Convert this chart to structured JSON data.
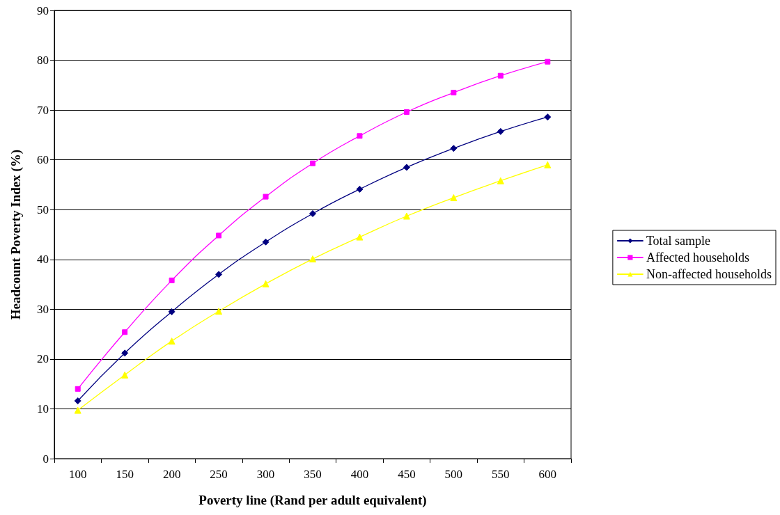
{
  "chart_data": {
    "type": "line",
    "xlabel": "Poverty line (Rand per adult equivalent)",
    "ylabel": "Headcount Poverty Index (%)",
    "categories": [
      "100",
      "150",
      "200",
      "250",
      "300",
      "350",
      "400",
      "450",
      "500",
      "550",
      "600"
    ],
    "series": [
      {
        "name": "Total sample",
        "color": "#000080",
        "marker": "diamond",
        "values": [
          11.6,
          21.2,
          29.5,
          37.0,
          43.5,
          49.2,
          54.1,
          58.5,
          62.3,
          65.7,
          68.6
        ]
      },
      {
        "name": "Affected households",
        "color": "#ff00ff",
        "marker": "square",
        "values": [
          14.0,
          25.4,
          35.8,
          44.8,
          52.6,
          59.3,
          64.8,
          69.6,
          73.5,
          76.9,
          79.7
        ]
      },
      {
        "name": "Non-affected households",
        "color": "#ffff00",
        "marker": "triangle",
        "values": [
          9.7,
          16.8,
          23.6,
          29.6,
          35.1,
          40.1,
          44.5,
          48.7,
          52.4,
          55.8,
          59.0
        ]
      }
    ],
    "ylim": [
      0,
      90
    ],
    "yticks": [
      0,
      10,
      20,
      30,
      40,
      50,
      60,
      70,
      80,
      90
    ],
    "grid": "y",
    "legend": "right",
    "line_style": "solid"
  }
}
